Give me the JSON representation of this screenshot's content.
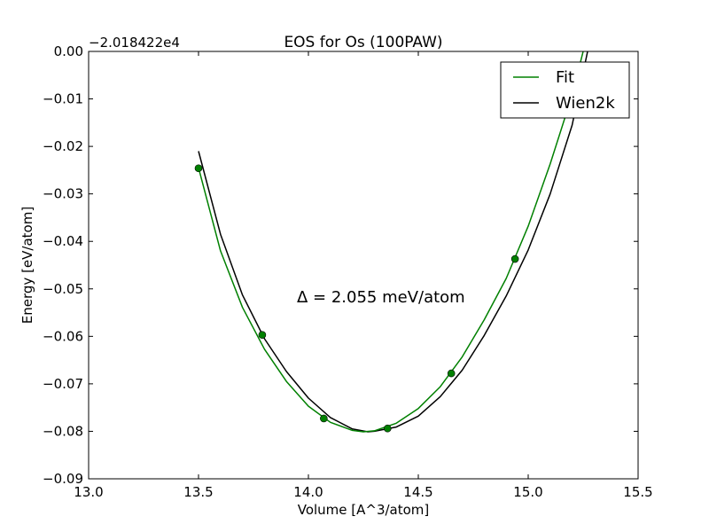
{
  "chart_data": {
    "type": "line",
    "title": "EOS for Os (100PAW)",
    "xlabel": "Volume [A^3/atom]",
    "ylabel": "Energy [eV/atom]",
    "offset_label": "−2.018422e4",
    "annotation": "Δ = 2.055 meV/atom",
    "xlim": [
      13.0,
      15.5
    ],
    "ylim": [
      -0.09,
      0.0
    ],
    "xticks": [
      13.0,
      13.5,
      14.0,
      14.5,
      15.0,
      15.5
    ],
    "xtick_labels": [
      "13.0",
      "13.5",
      "14.0",
      "14.5",
      "15.0",
      "15.5"
    ],
    "yticks": [
      0.0,
      -0.01,
      -0.02,
      -0.03,
      -0.04,
      -0.05,
      -0.06,
      -0.07,
      -0.08,
      -0.09
    ],
    "ytick_labels": [
      "0.00",
      "−0.01",
      "−0.02",
      "−0.03",
      "−0.04",
      "−0.05",
      "−0.06",
      "−0.07",
      "−0.08",
      "−0.09"
    ],
    "legend_position": "top-right",
    "series": [
      {
        "name": "Fit",
        "color": "#008000",
        "x": [
          13.5,
          13.6,
          13.7,
          13.8,
          13.9,
          14.0,
          14.1,
          14.2,
          14.25,
          14.3,
          14.4,
          14.5,
          14.6,
          14.7,
          14.8,
          14.9,
          15.0,
          15.1,
          15.2,
          15.25
        ],
        "y": [
          -0.0245,
          -0.042,
          -0.0539,
          -0.0627,
          -0.0695,
          -0.0747,
          -0.0781,
          -0.0798,
          -0.0801,
          -0.0799,
          -0.0783,
          -0.0752,
          -0.0706,
          -0.0643,
          -0.0565,
          -0.0478,
          -0.0368,
          -0.0237,
          -0.0092,
          0.0
        ]
      },
      {
        "name": "Wien2k",
        "color": "#000000",
        "x": [
          13.5,
          13.6,
          13.7,
          13.8,
          13.9,
          14.0,
          14.1,
          14.2,
          14.27,
          14.3,
          14.4,
          14.5,
          14.6,
          14.7,
          14.8,
          14.9,
          15.0,
          15.1,
          15.2,
          15.27
        ],
        "y": [
          -0.021,
          -0.0385,
          -0.0513,
          -0.0605,
          -0.0674,
          -0.073,
          -0.0771,
          -0.0795,
          -0.0801,
          -0.08,
          -0.0791,
          -0.0768,
          -0.0727,
          -0.0671,
          -0.0598,
          -0.0515,
          -0.0418,
          -0.03,
          -0.0155,
          0.0
        ]
      }
    ],
    "points": {
      "color": "#008000",
      "x": [
        13.5,
        13.79,
        14.07,
        14.36,
        14.65,
        14.94
      ],
      "y": [
        -0.0246,
        -0.0597,
        -0.0773,
        -0.0794,
        -0.0678,
        -0.0437
      ]
    }
  }
}
